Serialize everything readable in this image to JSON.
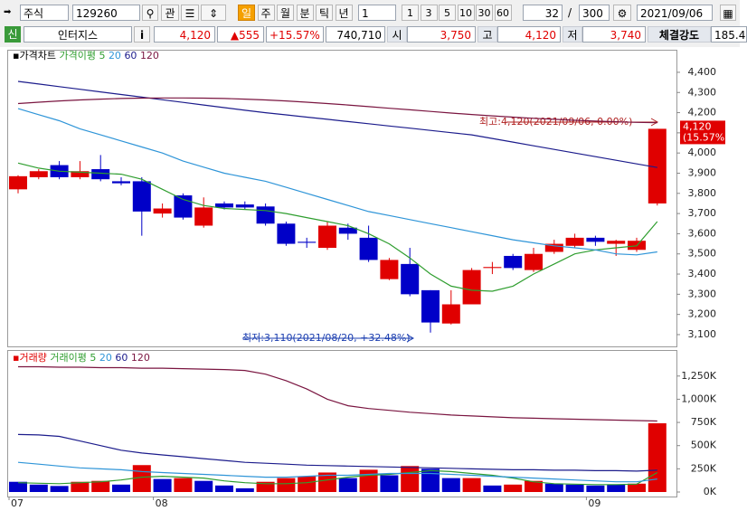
{
  "toolbar": {
    "market": "주식",
    "code": "129260",
    "watch": "관",
    "periods": [
      "일",
      "주",
      "월",
      "분",
      "틱",
      "년"
    ],
    "interval": "1",
    "quick": [
      "1",
      "3",
      "5",
      "10",
      "30",
      "60"
    ],
    "count": "32",
    "slash": "/",
    "max": "300",
    "date": "2021/09/06"
  },
  "quote": {
    "badge": "신",
    "name": "인터지스",
    "info": "i",
    "price": "4,120",
    "change": "▲555",
    "rate": "+15.57%",
    "volume": "740,710",
    "open_label": "시",
    "open": "3,750",
    "high_label": "고",
    "high": "4,120",
    "low_label": "저",
    "low": "3,740",
    "strength_label": "체결강도",
    "strength": "185.4"
  },
  "chart_data": [
    {
      "type": "candlestick",
      "title": "가격차트",
      "ma_label": "가격이평",
      "up_color": "#e00000",
      "down_color": "#0000c8",
      "categories": [
        "07",
        null,
        null,
        null,
        null,
        null,
        null,
        "08",
        null,
        null,
        null,
        null,
        null,
        null,
        null,
        null,
        null,
        null,
        null,
        null,
        null,
        null,
        null,
        null,
        null,
        null,
        null,
        null,
        "09",
        null,
        null,
        null
      ],
      "open": [
        3820,
        3880,
        3940,
        3880,
        3920,
        3860,
        3860,
        3700,
        3790,
        3640,
        3750,
        3745,
        3735,
        3650,
        3560,
        3530,
        3630,
        3580,
        3375,
        3450,
        3320,
        3155,
        3250,
        3430,
        3490,
        3420,
        3510,
        3540,
        3580,
        3550,
        3520,
        3750
      ],
      "high": [
        3890,
        3920,
        3960,
        3960,
        3990,
        3880,
        3880,
        3750,
        3800,
        3780,
        3760,
        3760,
        3750,
        3660,
        3580,
        3660,
        3650,
        3640,
        3480,
        3530,
        3320,
        3320,
        3430,
        3460,
        3500,
        3530,
        3570,
        3600,
        3590,
        3570,
        3580,
        4120
      ],
      "low": [
        3800,
        3870,
        3870,
        3870,
        3860,
        3840,
        3590,
        3680,
        3670,
        3630,
        3720,
        3720,
        3640,
        3540,
        3530,
        3520,
        3570,
        3460,
        3370,
        3290,
        3110,
        3150,
        3250,
        3400,
        3420,
        3410,
        3500,
        3530,
        3540,
        3490,
        3510,
        3740
      ],
      "close": [
        3885,
        3910,
        3880,
        3910,
        3870,
        3850,
        3710,
        3725,
        3680,
        3730,
        3730,
        3730,
        3650,
        3550,
        3555,
        3640,
        3600,
        3470,
        3470,
        3300,
        3160,
        3250,
        3420,
        3435,
        3430,
        3500,
        3550,
        3580,
        3560,
        3565,
        3565,
        4120
      ],
      "series": [
        {
          "name": "5",
          "color": "#2f9e2f",
          "values": [
            3950,
            3925,
            3910,
            3905,
            3900,
            3895,
            3870,
            3820,
            3770,
            3740,
            3725,
            3720,
            3715,
            3700,
            3680,
            3660,
            3640,
            3600,
            3550,
            3480,
            3400,
            3340,
            3320,
            3315,
            3340,
            3400,
            3450,
            3500,
            3520,
            3530,
            3540,
            3660
          ]
        },
        {
          "name": "20",
          "color": "#2f95d8",
          "values": [
            4220,
            4190,
            4160,
            4120,
            4090,
            4060,
            4030,
            4000,
            3960,
            3930,
            3900,
            3880,
            3860,
            3830,
            3800,
            3770,
            3740,
            3710,
            3690,
            3670,
            3650,
            3630,
            3610,
            3590,
            3570,
            3555,
            3540,
            3530,
            3520,
            3500,
            3495,
            3510
          ]
        },
        {
          "name": "60",
          "color": "#1c1c8c",
          "values": [
            4355,
            4342,
            4329,
            4316,
            4303,
            4290,
            4277,
            4264,
            4251,
            4238,
            4225,
            4212,
            4200,
            4189,
            4178,
            4167,
            4156,
            4145,
            4134,
            4123,
            4112,
            4101,
            4090,
            4072,
            4054,
            4036,
            4018,
            4000,
            3982,
            3964,
            3946,
            3928
          ]
        },
        {
          "name": "120",
          "color": "#7a1540",
          "values": [
            4245,
            4252,
            4258,
            4263,
            4267,
            4270,
            4272,
            4273,
            4273,
            4272,
            4270,
            4267,
            4263,
            4258,
            4252,
            4245,
            4238,
            4230,
            4222,
            4214,
            4206,
            4198,
            4191,
            4184,
            4178,
            4172,
            4167,
            4162,
            4158,
            4155,
            4152,
            4150
          ]
        }
      ],
      "ylim": [
        3055,
        4467
      ],
      "yticks": [
        {
          "value": 3100,
          "label": "3,100"
        },
        {
          "value": 3200,
          "label": "3,200"
        },
        {
          "value": 3300,
          "label": "3,300"
        },
        {
          "value": 3400,
          "label": "3,400"
        },
        {
          "value": 3500,
          "label": "3,500"
        },
        {
          "value": 3600,
          "label": "3,600"
        },
        {
          "value": 3700,
          "label": "3,700"
        },
        {
          "value": 3800,
          "label": "3,800"
        },
        {
          "value": 3900,
          "label": "3,900"
        },
        {
          "value": 4000,
          "label": "4,000"
        },
        {
          "value": 4100,
          "label": "4,100"
        },
        {
          "value": 4200,
          "label": "4,200"
        },
        {
          "value": 4300,
          "label": "4,300"
        },
        {
          "value": 4400,
          "label": "4,400"
        }
      ],
      "high_note": "최고:4,120(2021/09/06, 0.00%)",
      "low_note": "최저:3,110(2021/08/20, +32.48%)",
      "last_label": "4,120",
      "last_rate": "(15.57%)"
    },
    {
      "type": "bar",
      "title": "거래량",
      "ma_label": "거래이평",
      "values": [
        110000,
        80000,
        65000,
        110000,
        120000,
        80000,
        290000,
        140000,
        150000,
        120000,
        70000,
        40000,
        110000,
        150000,
        170000,
        210000,
        150000,
        240000,
        180000,
        280000,
        250000,
        150000,
        150000,
        70000,
        80000,
        120000,
        90000,
        80000,
        70000,
        80000,
        90000,
        740710
      ],
      "colors": [
        "#0000c8",
        "#0000c8",
        "#0000c8",
        "#e00000",
        "#e00000",
        "#0000c8",
        "#e00000",
        "#0000c8",
        "#e00000",
        "#0000c8",
        "#0000c8",
        "#0000c8",
        "#e00000",
        "#e00000",
        "#e00000",
        "#e00000",
        "#0000c8",
        "#e00000",
        "#0000c8",
        "#e00000",
        "#0000c8",
        "#0000c8",
        "#e00000",
        "#0000c8",
        "#e00000",
        "#e00000",
        "#0000c8",
        "#0000c8",
        "#0000c8",
        "#0000c8",
        "#e00000",
        "#e00000"
      ],
      "series": [
        {
          "name": "5",
          "color": "#2f9e2f",
          "values": [
            100000,
            95000,
            90000,
            100000,
            110000,
            130000,
            160000,
            170000,
            160000,
            150000,
            120000,
            100000,
            90000,
            90000,
            100000,
            130000,
            160000,
            180000,
            190000,
            210000,
            230000,
            220000,
            200000,
            180000,
            150000,
            110000,
            90000,
            85000,
            80000,
            80000,
            85000,
            210000
          ]
        },
        {
          "name": "20",
          "color": "#2f95d8",
          "values": [
            320000,
            300000,
            280000,
            260000,
            250000,
            240000,
            220000,
            210000,
            200000,
            190000,
            180000,
            170000,
            160000,
            160000,
            170000,
            180000,
            180000,
            190000,
            200000,
            200000,
            200000,
            190000,
            180000,
            170000,
            160000,
            150000,
            140000,
            130000,
            120000,
            110000,
            110000,
            140000
          ]
        },
        {
          "name": "60",
          "color": "#1c1c8c",
          "values": [
            620000,
            615000,
            600000,
            550000,
            500000,
            450000,
            420000,
            400000,
            380000,
            360000,
            340000,
            320000,
            310000,
            300000,
            290000,
            285000,
            280000,
            275000,
            270000,
            265000,
            260000,
            255000,
            250000,
            245000,
            240000,
            240000,
            235000,
            235000,
            230000,
            230000,
            225000,
            235000
          ]
        },
        {
          "name": "120",
          "color": "#7a1540",
          "values": [
            1350000,
            1350000,
            1345000,
            1345000,
            1340000,
            1340000,
            1335000,
            1335000,
            1330000,
            1325000,
            1320000,
            1310000,
            1270000,
            1200000,
            1110000,
            1000000,
            930000,
            900000,
            880000,
            860000,
            845000,
            830000,
            820000,
            810000,
            800000,
            795000,
            790000,
            785000,
            780000,
            775000,
            770000,
            765000
          ]
        }
      ],
      "ylim": [
        0,
        1355000
      ],
      "yticks": [
        {
          "value": 0,
          "label": "0K"
        },
        {
          "value": 250000,
          "label": "250K"
        },
        {
          "value": 500000,
          "label": "500K"
        },
        {
          "value": 750000,
          "label": "750K"
        },
        {
          "value": 1000000,
          "label": "1,000K"
        },
        {
          "value": 1250000,
          "label": "1,250K"
        }
      ]
    }
  ]
}
